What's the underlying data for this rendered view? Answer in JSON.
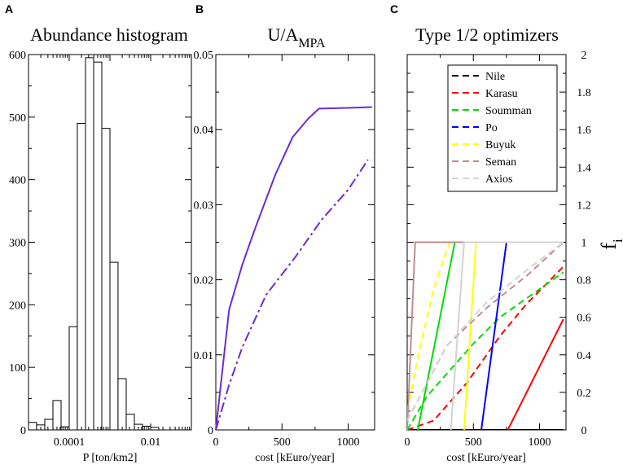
{
  "chart_data": [
    {
      "panel": "A",
      "type": "bar",
      "title": "Abundance histogram",
      "xlabel": "P [ton/km2]",
      "ylabel": "",
      "xscale": "log",
      "xlim": [
        1e-05,
        0.1
      ],
      "ylim": [
        0,
        600
      ],
      "yticks": [
        0,
        100,
        200,
        300,
        400,
        500,
        600
      ],
      "xticks": [
        {
          "v": 0.0001,
          "label": "0.0001"
        },
        {
          "v": 0.01,
          "label": "0.01"
        }
      ],
      "bins": [
        {
          "lo": 1e-05,
          "hi": 1.58e-05,
          "value": 12
        },
        {
          "lo": 1.58e-05,
          "hi": 2.51e-05,
          "value": 8
        },
        {
          "lo": 2.51e-05,
          "hi": 3.98e-05,
          "value": 17
        },
        {
          "lo": 3.98e-05,
          "hi": 6.31e-05,
          "value": 47
        },
        {
          "lo": 6.31e-05,
          "hi": 0.0001,
          "value": 5
        },
        {
          "lo": 0.0001,
          "hi": 0.000158,
          "value": 165
        },
        {
          "lo": 0.000158,
          "hi": 0.000251,
          "value": 490
        },
        {
          "lo": 0.000251,
          "hi": 0.000398,
          "value": 595
        },
        {
          "lo": 0.000398,
          "hi": 0.000631,
          "value": 588
        },
        {
          "lo": 0.000631,
          "hi": 0.001,
          "value": 482
        },
        {
          "lo": 0.001,
          "hi": 0.00158,
          "value": 268
        },
        {
          "lo": 0.00158,
          "hi": 0.00251,
          "value": 82
        },
        {
          "lo": 0.00251,
          "hi": 0.00398,
          "value": 25
        },
        {
          "lo": 0.00398,
          "hi": 0.00631,
          "value": 9
        },
        {
          "lo": 0.00631,
          "hi": 0.01,
          "value": 6
        },
        {
          "lo": 0.01,
          "hi": 0.0158,
          "value": 4
        }
      ]
    },
    {
      "panel": "B",
      "type": "line",
      "title": "U/A",
      "title_sub": "MPA",
      "xlabel": "cost [kEuro/year]",
      "ylabel": "",
      "xlim": [
        0,
        1200
      ],
      "ylim": [
        0,
        0.05
      ],
      "xticks": [
        0,
        500,
        1000
      ],
      "yticks": [
        0,
        0.01,
        0.02,
        0.03,
        0.04,
        0.05
      ],
      "color": "#6a2bd6",
      "series": [
        {
          "name": "solid",
          "style": "solid",
          "x": [
            0,
            100,
            200,
            300,
            450,
            580,
            700,
            780,
            1000,
            1180
          ],
          "y": [
            0,
            0.016,
            0.022,
            0.027,
            0.034,
            0.039,
            0.0415,
            0.0428,
            0.0429,
            0.043
          ]
        },
        {
          "name": "dashed",
          "style": "dashdot",
          "x": [
            0,
            100,
            200,
            380,
            600,
            800,
            1000,
            1150
          ],
          "y": [
            0,
            0.006,
            0.011,
            0.018,
            0.023,
            0.028,
            0.032,
            0.036
          ]
        }
      ]
    },
    {
      "panel": "C",
      "type": "line",
      "title": "Type 1/2 optimizers",
      "xlabel": "cost [kEuro/year]",
      "ylabel": "f",
      "ylabel_sub": "i",
      "ylabel_side": "right",
      "xlim": [
        0,
        1200
      ],
      "ylim": [
        0,
        2
      ],
      "xticks": [
        0,
        500,
        1000
      ],
      "yticks": [
        0,
        0.2,
        0.4,
        0.6,
        0.8,
        1,
        1.2,
        1.4,
        1.6,
        1.8,
        2
      ],
      "ytick_labels": [
        "0",
        "0.2",
        "0.4",
        "0.6",
        "0.8",
        "1",
        "1.2",
        "1.4",
        "1.6",
        "1.8",
        "2"
      ],
      "legend": [
        {
          "name": "Nile",
          "color": "#000000"
        },
        {
          "name": "Karasu",
          "color": "#ff0000"
        },
        {
          "name": "Soumman",
          "color": "#00dd00"
        },
        {
          "name": "Po",
          "color": "#0000ff"
        },
        {
          "name": "Buyuk",
          "color": "#ffff00"
        },
        {
          "name": "Seman",
          "color": "#bc8f8f"
        },
        {
          "name": "Axios",
          "color": "#d3d3d3"
        }
      ],
      "legend_position": "top-right",
      "series": [
        {
          "name": "Nile",
          "color": "#000000",
          "style": "solid",
          "x": [
            0,
            1180
          ],
          "y": [
            0,
            0
          ]
        },
        {
          "name": "Karasu",
          "color": "#ff0000",
          "style": "solid",
          "x": [
            760,
            1180
          ],
          "y": [
            0,
            0.59
          ]
        },
        {
          "name": "Karasu",
          "color": "#ff0000",
          "style": "dashed",
          "x": [
            0,
            200,
            450,
            700,
            900,
            1180
          ],
          "y": [
            0,
            0.05,
            0.25,
            0.5,
            0.67,
            0.87
          ]
        },
        {
          "name": "Soumman",
          "color": "#00dd00",
          "style": "solid",
          "x": [
            80,
            360,
            1180
          ],
          "y": [
            0,
            1,
            1
          ]
        },
        {
          "name": "Soumman",
          "color": "#00dd00",
          "style": "dashed",
          "x": [
            0,
            150,
            300,
            500,
            700,
            900,
            1180
          ],
          "y": [
            0,
            0.18,
            0.3,
            0.46,
            0.6,
            0.7,
            0.84
          ]
        },
        {
          "name": "Po",
          "color": "#0000ff",
          "style": "solid",
          "x": [
            560,
            750,
            1180
          ],
          "y": [
            0,
            1,
            1
          ]
        },
        {
          "name": "Buyuk",
          "color": "#ffff00",
          "style": "solid",
          "x": [
            430,
            520,
            1180
          ],
          "y": [
            0,
            1,
            1
          ]
        },
        {
          "name": "Buyuk",
          "color": "#ffff00",
          "style": "dashed",
          "x": [
            0,
            100,
            200,
            320
          ],
          "y": [
            0.1,
            0.45,
            0.75,
            1
          ]
        },
        {
          "name": "Seman",
          "color": "#bc8f8f",
          "style": "solid",
          "x": [
            0,
            60,
            1180
          ],
          "y": [
            0,
            1,
            1
          ]
        },
        {
          "name": "Seman",
          "color": "#bc8f8f",
          "style": "dashed",
          "x": [
            0,
            300,
            600,
            900,
            1180
          ],
          "y": [
            0.05,
            0.45,
            0.65,
            0.82,
            1
          ]
        },
        {
          "name": "Axios",
          "color": "#d3d3d3",
          "style": "solid",
          "x": [
            330,
            430,
            1180
          ],
          "y": [
            0,
            1,
            1
          ]
        },
        {
          "name": "Axios",
          "color": "#d3d3d3",
          "style": "dashed",
          "x": [
            0,
            300,
            600,
            900,
            1180
          ],
          "y": [
            0.05,
            0.45,
            0.68,
            0.85,
            1
          ]
        }
      ]
    }
  ]
}
